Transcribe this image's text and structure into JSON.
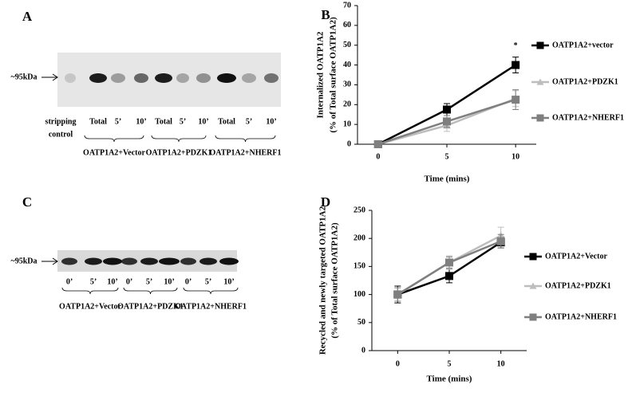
{
  "panels": [
    "A",
    "B",
    "C",
    "D"
  ],
  "blots": [
    {
      "marker": "~95kDa",
      "lanes": [
        "stripping",
        "Total",
        "5’",
        "10’",
        "Total",
        "5’",
        "10’",
        "Total",
        "5’",
        "10’"
      ],
      "lane_note": "control",
      "groups": [
        "OATP1A2+Vector",
        "OATP1A2+PDZK1",
        "OATP1A2+NHERF1"
      ]
    },
    {
      "marker": "~95kDa",
      "lanes": [
        "0’",
        "5’",
        "10’",
        "0’",
        "5’",
        "10’",
        "0’",
        "5’",
        "10’"
      ],
      "groups": [
        "OATP1A2+Vector",
        "OATP1A2+PDZK1",
        "OATP1A2+NHERF1"
      ]
    }
  ],
  "chart_data": [
    {
      "type": "line",
      "ylabel": [
        "Internalized OATP1A2",
        "(% of Total surface OATP1A2)"
      ],
      "xlabel": "Time (mins)",
      "x": [
        0,
        5,
        10
      ],
      "xlim": [
        -1.5,
        11.5
      ],
      "xticks": [
        0,
        5,
        10
      ],
      "ylim": [
        0,
        70
      ],
      "yticks": [
        0,
        10,
        20,
        30,
        40,
        50,
        60,
        70
      ],
      "annotations": [
        "*"
      ],
      "series": [
        {
          "name": "OATP1A2+vector",
          "color": "#000000",
          "marker": "square",
          "values": [
            0,
            17.5,
            40
          ],
          "errors": [
            0,
            3,
            4
          ]
        },
        {
          "name": "OATP1A2+PDZK1",
          "color": "#bdbdbd",
          "marker": "triangle",
          "values": [
            0,
            9.5,
            23
          ],
          "errors": [
            0,
            3,
            4
          ]
        },
        {
          "name": "OATP1A2+NHERF1",
          "color": "#7f7f7f",
          "marker": "square",
          "values": [
            0,
            11.5,
            22.5
          ],
          "errors": [
            0,
            3,
            5
          ]
        }
      ]
    },
    {
      "type": "line",
      "ylabel": [
        "Recycled and newly targeted OATP1A2",
        "(% of Total surface OATP1A2)"
      ],
      "xlabel": "Time (mins)",
      "x": [
        0,
        5,
        10
      ],
      "xlim": [
        -2.5,
        12.5
      ],
      "xticks": [
        0,
        5,
        10
      ],
      "ylim": [
        0,
        250
      ],
      "yticks": [
        0,
        50,
        100,
        150,
        200,
        250
      ],
      "series": [
        {
          "name": "OATP1A2+Vector",
          "color": "#000000",
          "marker": "square",
          "values": [
            100,
            133,
            193
          ],
          "errors": [
            15,
            12,
            10
          ]
        },
        {
          "name": "OATP1A2+PDZK1",
          "color": "#bdbdbd",
          "marker": "triangle",
          "values": [
            100,
            157,
            205
          ],
          "errors": [
            12,
            12,
            15
          ]
        },
        {
          "name": "OATP1A2+NHERF1",
          "color": "#7f7f7f",
          "marker": "square",
          "values": [
            100,
            157,
            195
          ],
          "errors": [
            12,
            10,
            12
          ]
        }
      ]
    }
  ]
}
